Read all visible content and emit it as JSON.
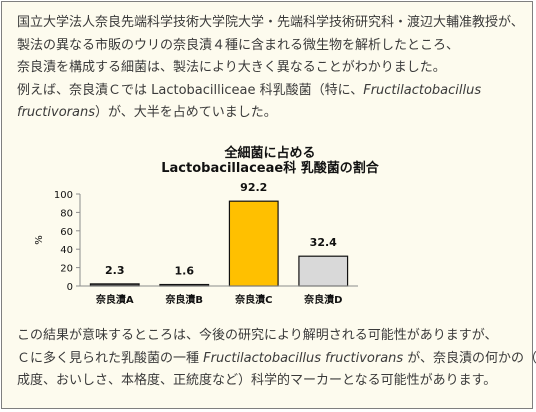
{
  "paragraph_top": {
    "line1": "国立大学法人奈良先端科学技術大学院大学・先端科学技術研究科・渡辺大輔准教授が、",
    "line2": "製法の異なる市販のウリの奈良漬４種に含まれる微生物を解析したところ、",
    "line3": "奈良漬を構成する細菌は、製法により大きく異なることがわかりました。",
    "line4_pre": "例えば、奈良漬Ｃでは Lactobacilliceae 科乳酸菌（特に、",
    "line4_italic": "Fructilactobacillus",
    "line5_italic": "fructivorans",
    "line5_post": "）が、大半を占めていました。"
  },
  "paragraph_bottom": {
    "line1": "この結果が意味するところは、今後の研究により解明される可能性がありますが、",
    "line2_pre": "Ｃに多く見られた乳酸菌の一種 ",
    "line2_italic": "Fructilactobacillus fructivorans",
    "line2_post": " が、奈良漬の何かの（熟",
    "line3": "成度、おいしさ、本格度、正統度など）科学的マーカーとなる可能性があります。"
  },
  "chart_data": {
    "type": "bar",
    "title_line1": "全細菌に占める",
    "title_line2": "Lactobacillaceae科 乳酸菌の割合",
    "ylabel": "%",
    "ylim": [
      0,
      100
    ],
    "yticks": [
      0,
      20,
      40,
      60,
      80,
      100
    ],
    "categories": [
      "奈良漬A",
      "奈良漬B",
      "奈良漬C",
      "奈良漬D"
    ],
    "values": [
      2.3,
      1.6,
      92.2,
      32.4
    ],
    "value_labels": [
      "2.3",
      "1.6",
      "92.2",
      "32.4"
    ],
    "bar_colors": [
      "#404040",
      "#404040",
      "#ffc000",
      "#d9d9d9"
    ],
    "grid": false,
    "legend": "none"
  }
}
